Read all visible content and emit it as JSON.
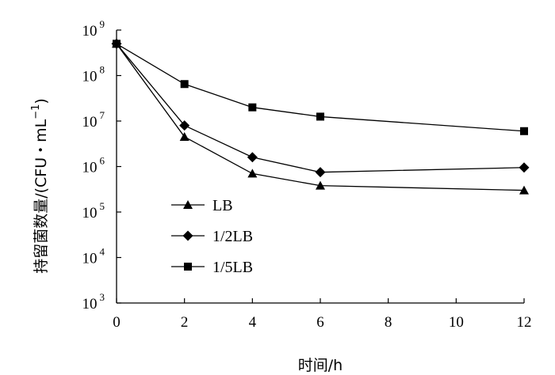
{
  "chart_data": {
    "type": "line",
    "xlabel": "时间/h",
    "ylabel": "持留菌数量/(CFU・mL",
    "ylabel_sup": "−1",
    "ylabel_close": ")",
    "y_scale": "log",
    "xlim": [
      0,
      12
    ],
    "ylim": [
      1000,
      1000000000
    ],
    "x_ticks": [
      0,
      2,
      4,
      6,
      8,
      10,
      12
    ],
    "x_tick_labels": [
      "0",
      "2",
      "4",
      "6",
      "8",
      "10",
      "12"
    ],
    "y_tick_base": "10",
    "y_tick_exponents": [
      "3",
      "4",
      "5",
      "6",
      "7",
      "8",
      "9"
    ],
    "grid": false,
    "legend_position": "lower-left",
    "series": [
      {
        "name": "LB",
        "marker": "triangle",
        "x": [
          0,
          2,
          4,
          6,
          12
        ],
        "y": [
          500000000,
          4500000,
          700000,
          380000,
          300000
        ]
      },
      {
        "name": "1/2LB",
        "marker": "diamond",
        "x": [
          0,
          2,
          4,
          6,
          12
        ],
        "y": [
          500000000,
          8000000,
          1600000,
          750000,
          950000
        ]
      },
      {
        "name": "1/5LB",
        "marker": "square",
        "x": [
          0,
          2,
          4,
          6,
          12
        ],
        "y": [
          500000000,
          65000000,
          20000000,
          12500000,
          6000000
        ]
      }
    ]
  }
}
